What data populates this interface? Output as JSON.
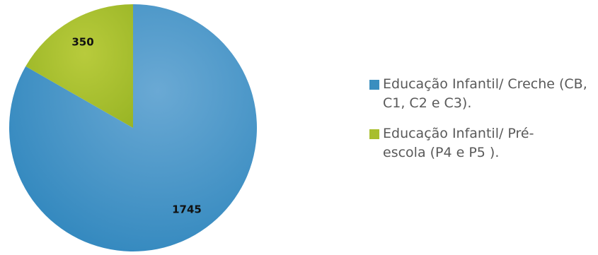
{
  "chart_data": {
    "type": "pie",
    "categories": [
      "Educação Infantil/ Creche (CB, C1, C2 e C3).",
      "Educação Infantil/ Pré-escola (P4 e P5 )."
    ],
    "values": [
      1745,
      350
    ],
    "data_labels": [
      "1745",
      "350"
    ],
    "colors": [
      "#3a8ebf",
      "#a8be2c"
    ],
    "legend_position": "right"
  }
}
